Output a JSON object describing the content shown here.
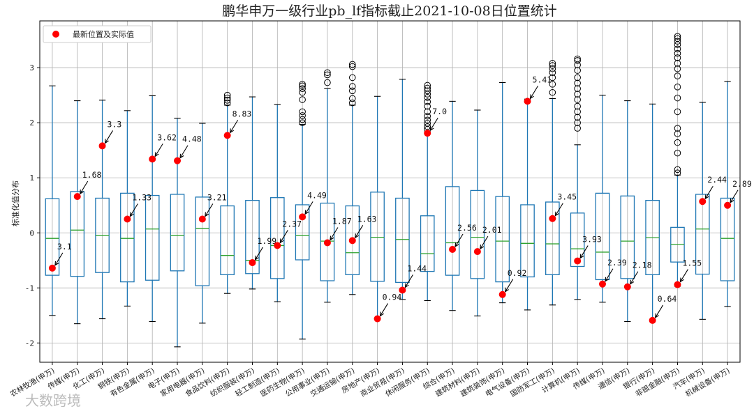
{
  "chart_data": {
    "type": "box",
    "title": "鹏华申万一级行业pb_lf指标截止2021-10-08日位置统计",
    "xlabel": "",
    "ylabel": "标准化值分布",
    "ylim": [
      -2.35,
      3.85
    ],
    "yticks": [
      -2,
      -1,
      0,
      1,
      2,
      3
    ],
    "grid": true,
    "legend": {
      "label": "最新位置及实际值",
      "placement": "top-left",
      "marker_color": "#ff0000"
    },
    "colors": {
      "box": "#1f77b4",
      "median": "#2ca02c",
      "point": "#ff0000",
      "outlier": "#000000"
    },
    "watermark": "大数跨境",
    "categories": [
      "农林牧渔(申万)",
      "传媒(申万)",
      "化工(申万)",
      "钢铁(申万)",
      "有色金属(申万)",
      "电子(申万)",
      "家用电器(申万)",
      "食品饮料(申万)",
      "纺织服装(申万)",
      "轻工制造(申万)",
      "医药生物(申万)",
      "公用事业(申万)",
      "交通运输(申万)",
      "房地产(申万)",
      "商业贸易(申万)",
      "休闲服务(申万)",
      "综合(申万)",
      "建筑材料(申万)",
      "建筑装饰(申万)",
      "电气设备(申万)",
      "国防军工(申万)",
      "计算机(申万)",
      "传媒(申万)",
      "通信(申万)",
      "银行(申万)",
      "非银金融(申万)",
      "汽车(申万)",
      "机械设备(申万)"
    ],
    "series": [
      {
        "name": "农林牧渔",
        "whisker_low": -1.5,
        "q1": -0.77,
        "median": -0.1,
        "q3": 0.62,
        "whisker_high": 2.67,
        "outliers": [],
        "latest": -0.64,
        "actual": "3.1"
      },
      {
        "name": "传媒",
        "whisker_low": -1.65,
        "q1": -0.79,
        "median": 0.05,
        "q3": 0.75,
        "whisker_high": 2.4,
        "outliers": [],
        "latest": 0.66,
        "actual": "1.68"
      },
      {
        "name": "化工",
        "whisker_low": -1.56,
        "q1": -0.72,
        "median": -0.05,
        "q3": 0.63,
        "whisker_high": 2.41,
        "outliers": [],
        "latest": 1.58,
        "actual": "3.3"
      },
      {
        "name": "钢铁",
        "whisker_low": -1.33,
        "q1": -0.89,
        "median": -0.1,
        "q3": 0.72,
        "whisker_high": 2.22,
        "outliers": [],
        "latest": 0.25,
        "actual": "1.33"
      },
      {
        "name": "有色金属",
        "whisker_low": -1.61,
        "q1": -0.86,
        "median": 0.07,
        "q3": 0.68,
        "whisker_high": 2.49,
        "outliers": [],
        "latest": 1.34,
        "actual": "3.62"
      },
      {
        "name": "电子",
        "whisker_low": -2.07,
        "q1": -0.69,
        "median": -0.05,
        "q3": 0.7,
        "whisker_high": 2.08,
        "outliers": [],
        "latest": 1.31,
        "actual": "4.48"
      },
      {
        "name": "家用电器",
        "whisker_low": -1.64,
        "q1": -0.96,
        "median": 0.08,
        "q3": 0.65,
        "whisker_high": 1.99,
        "outliers": [],
        "latest": 0.25,
        "actual": "3.21"
      },
      {
        "name": "食品饮料",
        "whisker_low": -1.1,
        "q1": -0.76,
        "median": -0.41,
        "q3": 0.49,
        "whisker_high": 2.32,
        "outliers": [
          2.36,
          2.41,
          2.45,
          2.5
        ],
        "latest": 1.77,
        "actual": "8.83"
      },
      {
        "name": "纺织服装",
        "whisker_low": -1.02,
        "q1": -0.74,
        "median": -0.5,
        "q3": 0.59,
        "whisker_high": 2.47,
        "outliers": [],
        "latest": -0.54,
        "actual": "1.99"
      },
      {
        "name": "轻工制造",
        "whisker_low": -1.25,
        "q1": -0.83,
        "median": -0.23,
        "q3": 0.64,
        "whisker_high": 2.33,
        "outliers": [],
        "latest": -0.23,
        "actual": "2.37"
      },
      {
        "name": "医药生物",
        "whisker_low": -1.93,
        "q1": -0.49,
        "median": -0.05,
        "q3": 0.51,
        "whisker_high": 1.97,
        "outliers": [
          2.0,
          2.06,
          2.13,
          2.2,
          2.42,
          2.55,
          2.62,
          2.67,
          2.7
        ],
        "latest": 0.29,
        "actual": "4.49"
      },
      {
        "name": "公用事业",
        "whisker_low": -1.26,
        "q1": -0.87,
        "median": -0.15,
        "q3": 0.54,
        "whisker_high": 2.62,
        "outliers": [
          2.73,
          2.87,
          2.91
        ],
        "latest": -0.18,
        "actual": "1.87"
      },
      {
        "name": "交通运输",
        "whisker_low": -1.12,
        "q1": -0.76,
        "median": -0.36,
        "q3": 0.49,
        "whisker_high": 2.32,
        "outliers": [
          2.36,
          2.44,
          2.58,
          2.66,
          2.82,
          3.02,
          3.06
        ],
        "latest": -0.14,
        "actual": "1.63"
      },
      {
        "name": "房地产",
        "whisker_low": -1.55,
        "q1": -0.88,
        "median": -0.08,
        "q3": 0.74,
        "whisker_high": 2.48,
        "outliers": [],
        "latest": -1.56,
        "actual": "0.94"
      },
      {
        "name": "商业贸易",
        "whisker_low": -1.21,
        "q1": -0.9,
        "median": -0.12,
        "q3": 0.63,
        "whisker_high": 2.79,
        "outliers": [],
        "latest": -1.04,
        "actual": "1.44"
      },
      {
        "name": "休闲服务",
        "whisker_low": -1.23,
        "q1": -0.7,
        "median": -0.38,
        "q3": 0.31,
        "whisker_high": 1.84,
        "outliers": [
          1.88,
          1.93,
          1.99,
          2.05,
          2.12,
          2.2,
          2.3,
          2.38,
          2.46,
          2.52,
          2.58,
          2.63,
          2.68
        ],
        "latest": 1.81,
        "actual": "7.0"
      },
      {
        "name": "综合",
        "whisker_low": -1.41,
        "q1": -0.77,
        "median": -0.18,
        "q3": 0.84,
        "whisker_high": 2.39,
        "outliers": [],
        "latest": -0.3,
        "actual": "2.56"
      },
      {
        "name": "建筑材料",
        "whisker_low": -1.51,
        "q1": -0.83,
        "median": -0.08,
        "q3": 0.77,
        "whisker_high": 2.23,
        "outliers": [],
        "latest": -0.34,
        "actual": "2.01"
      },
      {
        "name": "建筑装饰",
        "whisker_low": -1.27,
        "q1": -0.89,
        "median": -0.15,
        "q3": 0.66,
        "whisker_high": 2.73,
        "outliers": [],
        "latest": -1.12,
        "actual": "0.92"
      },
      {
        "name": "电气设备",
        "whisker_low": -1.4,
        "q1": -0.8,
        "median": -0.19,
        "q3": 0.51,
        "whisker_high": 2.43,
        "outliers": [],
        "latest": 2.39,
        "actual": "5.41"
      },
      {
        "name": "国防军工",
        "whisker_low": -1.31,
        "q1": -0.76,
        "median": -0.2,
        "q3": 0.56,
        "whisker_high": 2.44,
        "outliers": [
          2.55,
          2.7,
          2.82,
          2.91,
          2.98,
          3.04,
          3.08
        ],
        "latest": 0.26,
        "actual": "3.45"
      },
      {
        "name": "计算机",
        "whisker_low": -1.21,
        "q1": -0.61,
        "median": -0.29,
        "q3": 0.36,
        "whisker_high": 1.6,
        "outliers": [
          1.9,
          2.0,
          2.1,
          2.2,
          2.3,
          2.42,
          2.52,
          2.62,
          2.72,
          2.82,
          2.95,
          3.05,
          3.13,
          3.16
        ],
        "latest": -0.51,
        "actual": "3.93"
      },
      {
        "name": "传媒",
        "whisker_low": -1.26,
        "q1": -0.85,
        "median": -0.35,
        "q3": 0.72,
        "whisker_high": 2.5,
        "outliers": [],
        "latest": -0.93,
        "actual": "2.39"
      },
      {
        "name": "通信",
        "whisker_low": -1.61,
        "q1": -0.83,
        "median": -0.15,
        "q3": 0.67,
        "whisker_high": 2.4,
        "outliers": [],
        "latest": -0.98,
        "actual": "2.18"
      },
      {
        "name": "银行",
        "whisker_low": -1.58,
        "q1": -0.76,
        "median": -0.09,
        "q3": 0.59,
        "whisker_high": 2.34,
        "outliers": [],
        "latest": -1.59,
        "actual": "0.64"
      },
      {
        "name": "非银金融",
        "whisker_low": -0.97,
        "q1": -0.53,
        "median": -0.21,
        "q3": 0.1,
        "whisker_high": 1.05,
        "outliers": [
          1.09,
          1.15,
          1.45,
          1.64,
          1.8,
          1.9,
          2.2,
          2.45,
          2.65,
          2.85,
          2.98,
          3.08,
          3.18,
          3.26,
          3.34,
          3.42,
          3.48,
          3.53,
          3.57
        ],
        "latest": -0.94,
        "actual": "1.55"
      },
      {
        "name": "汽车",
        "whisker_low": -1.57,
        "q1": -0.75,
        "median": 0.07,
        "q3": 0.7,
        "whisker_high": 2.37,
        "outliers": [],
        "latest": 0.57,
        "actual": "2.44"
      },
      {
        "name": "机械设备",
        "whisker_low": -1.34,
        "q1": -0.87,
        "median": -0.1,
        "q3": 0.63,
        "whisker_high": 2.75,
        "outliers": [],
        "latest": 0.5,
        "actual": "2.89"
      }
    ]
  }
}
